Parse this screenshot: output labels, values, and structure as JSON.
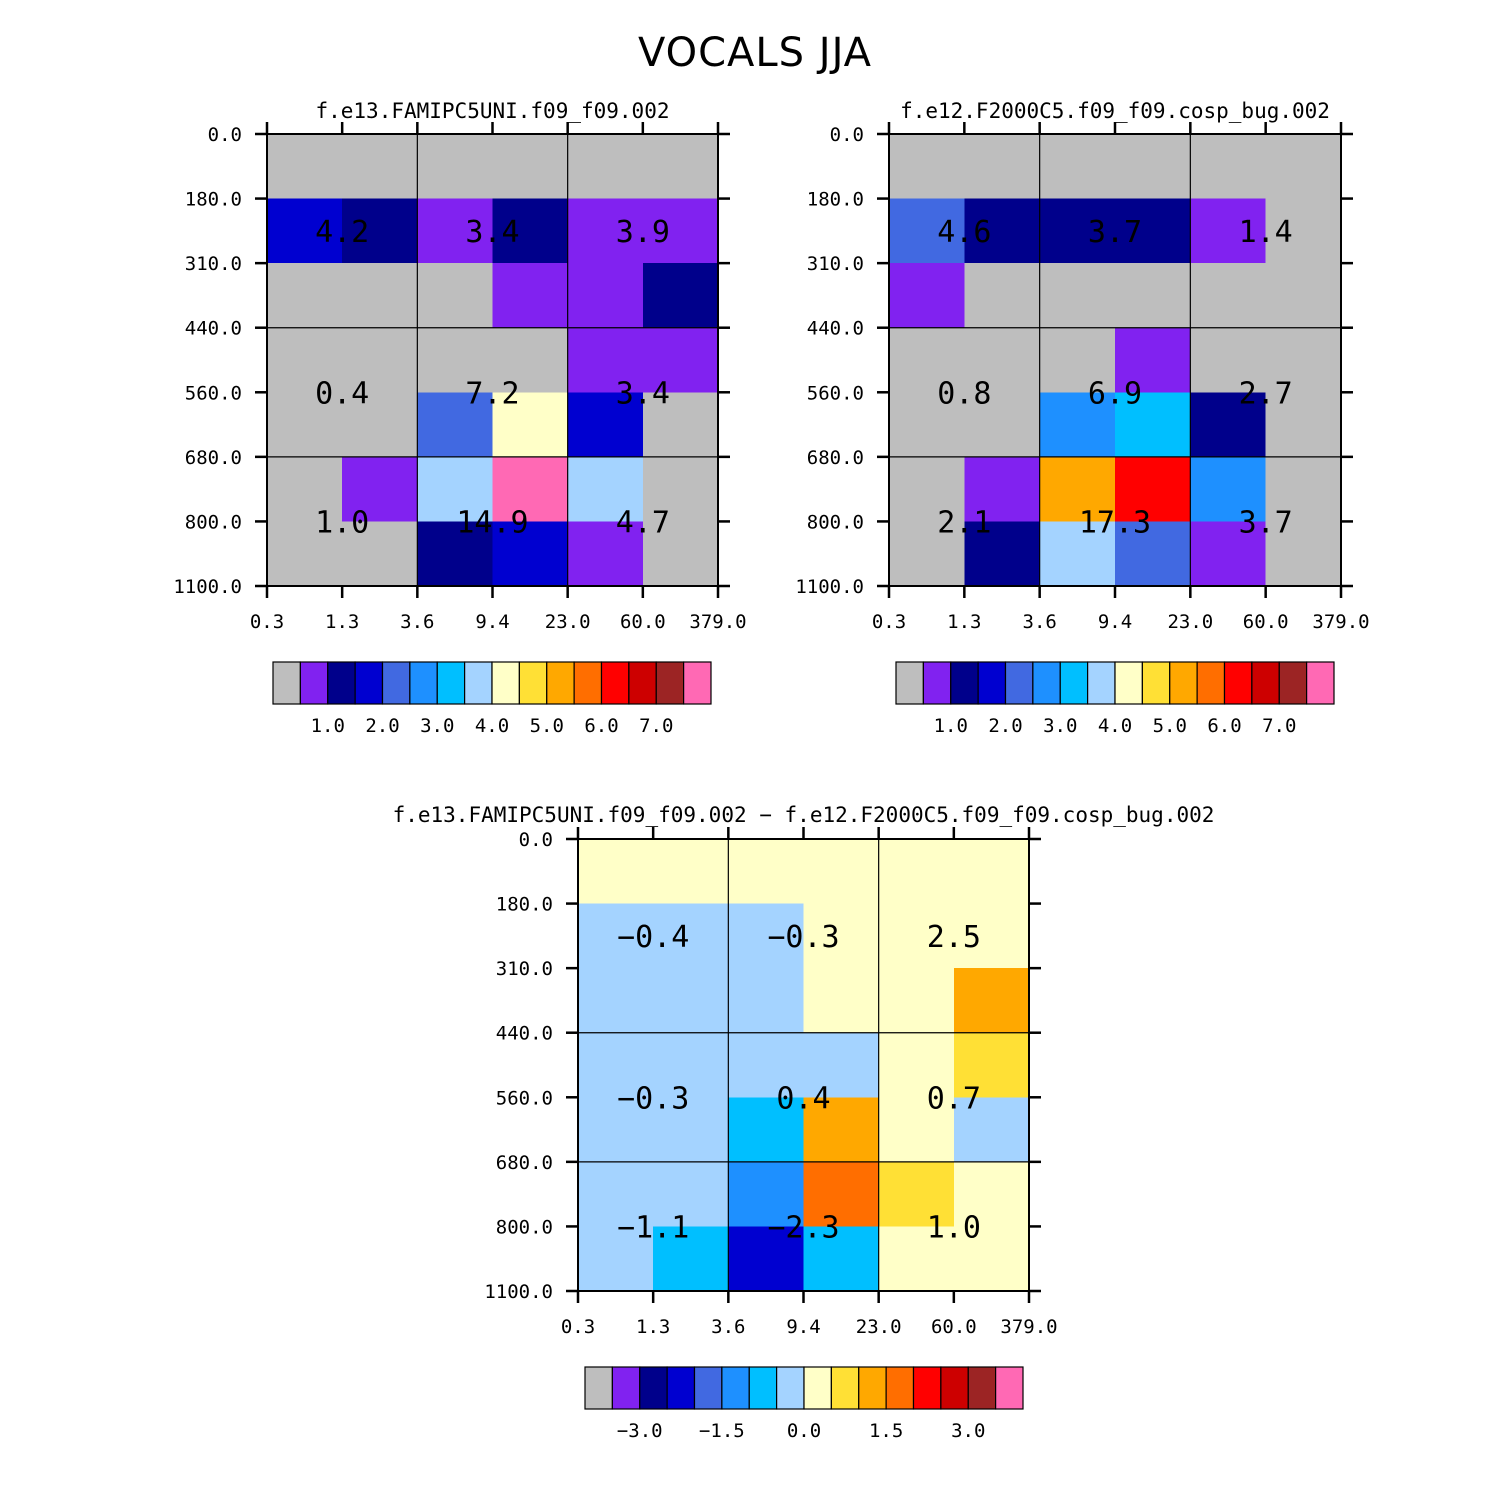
{
  "title": "VOCALS JJA",
  "chart_data": [
    {
      "type": "heatmap",
      "title": "f.e13.FAMIPC5UNI.f09_f09.002",
      "x_tick_labels": [
        "0.3",
        "1.3",
        "3.6",
        "9.4",
        "23.0",
        "60.0",
        "379.0"
      ],
      "y_tick_labels": [
        "0.0",
        "180.0",
        "310.0",
        "440.0",
        "560.0",
        "680.0",
        "800.0",
        "1100.0"
      ],
      "cells": [
        [
          "gray",
          "gray",
          "gray",
          "gray",
          "gray",
          "gray"
        ],
        [
          "blue",
          "navy",
          "purple",
          "navy",
          "purple",
          "purple"
        ],
        [
          "gray",
          "gray",
          "gray",
          "purple",
          "purple",
          "navy"
        ],
        [
          "gray",
          "gray",
          "gray",
          "gray",
          "purple",
          "purple"
        ],
        [
          "gray",
          "gray",
          "royalblue",
          "lightyellow",
          "blue",
          "gray"
        ],
        [
          "gray",
          "purple",
          "lightblue",
          "pink",
          "lightblue",
          "gray"
        ],
        [
          "gray",
          "gray",
          "navy",
          "blue",
          "purple",
          "gray"
        ]
      ],
      "box_values": [
        [
          "4.2",
          "3.4",
          "3.9"
        ],
        [
          "0.4",
          "7.2",
          "3.4"
        ],
        [
          "1.0",
          "14.9",
          "4.7"
        ]
      ],
      "colorbar_labels": [
        "1.0",
        "2.0",
        "3.0",
        "4.0",
        "5.0",
        "6.0",
        "7.0"
      ]
    },
    {
      "type": "heatmap",
      "title": "f.e12.F2000C5.f09_f09.cosp_bug.002",
      "x_tick_labels": [
        "0.3",
        "1.3",
        "3.6",
        "9.4",
        "23.0",
        "60.0",
        "379.0"
      ],
      "y_tick_labels": [
        "0.0",
        "180.0",
        "310.0",
        "440.0",
        "560.0",
        "680.0",
        "800.0",
        "1100.0"
      ],
      "cells": [
        [
          "gray",
          "gray",
          "gray",
          "gray",
          "gray",
          "gray"
        ],
        [
          "royalblue",
          "navy",
          "navy",
          "navy",
          "purple",
          "gray"
        ],
        [
          "purple",
          "gray",
          "gray",
          "gray",
          "gray",
          "gray"
        ],
        [
          "gray",
          "gray",
          "gray",
          "purple",
          "gray",
          "gray"
        ],
        [
          "gray",
          "gray",
          "dodgerblue",
          "deepskyblue",
          "navy",
          "gray"
        ],
        [
          "gray",
          "purple",
          "orange",
          "red",
          "dodgerblue",
          "gray"
        ],
        [
          "gray",
          "navy",
          "lightblue",
          "royalblue",
          "purple",
          "gray"
        ]
      ],
      "box_values": [
        [
          "4.6",
          "3.7",
          "1.4"
        ],
        [
          "0.8",
          "6.9",
          "2.7"
        ],
        [
          "2.1",
          "17.3",
          "3.7"
        ]
      ],
      "colorbar_labels": [
        "1.0",
        "2.0",
        "3.0",
        "4.0",
        "5.0",
        "6.0",
        "7.0"
      ]
    },
    {
      "type": "heatmap",
      "title": "f.e13.FAMIPC5UNI.f09_f09.002 − f.e12.F2000C5.f09_f09.cosp_bug.002",
      "x_tick_labels": [
        "0.3",
        "1.3",
        "3.6",
        "9.4",
        "23.0",
        "60.0",
        "379.0"
      ],
      "y_tick_labels": [
        "0.0",
        "180.0",
        "310.0",
        "440.0",
        "560.0",
        "680.0",
        "800.0",
        "1100.0"
      ],
      "cells": [
        [
          "lightyellow",
          "lightyellow",
          "lightyellow",
          "lightyellow",
          "lightyellow",
          "lightyellow"
        ],
        [
          "lightblue",
          "lightblue",
          "lightblue",
          "lightyellow",
          "lightyellow",
          "lightyellow"
        ],
        [
          "lightblue",
          "lightblue",
          "lightblue",
          "lightyellow",
          "lightyellow",
          "orange"
        ],
        [
          "lightblue",
          "lightblue",
          "lightblue",
          "lightblue",
          "lightyellow",
          "gold"
        ],
        [
          "lightblue",
          "lightblue",
          "deepskyblue",
          "orange",
          "lightyellow",
          "lightblue"
        ],
        [
          "lightblue",
          "lightblue",
          "dodgerblue",
          "darkorange",
          "gold",
          "lightyellow"
        ],
        [
          "lightblue",
          "deepskyblue",
          "blue",
          "deepskyblue",
          "lightyellow",
          "lightyellow"
        ]
      ],
      "box_values": [
        [
          "−0.4",
          "−0.3",
          "2.5"
        ],
        [
          "−0.3",
          "0.4",
          "0.7"
        ],
        [
          "−1.1",
          "−2.3",
          "1.0"
        ]
      ],
      "colorbar_labels": [
        "−3.0",
        "−1.5",
        "0.0",
        "1.5",
        "3.0"
      ]
    }
  ],
  "colors": {
    "gray": "#bebebe",
    "purple": "#8122f0",
    "navy": "#00008b",
    "blue": "#0000d0",
    "royalblue": "#4169e1",
    "dodgerblue": "#1e90ff",
    "deepskyblue": "#00bfff",
    "lightblue": "#a4d3ff",
    "lightyellow": "#ffffc8",
    "gold": "#ffe035",
    "orange": "#ffa800",
    "darkorange": "#ff6e00",
    "red": "#ff0000",
    "darkred": "#cd0000",
    "brown": "#9c2424",
    "pink": "#ff69b4"
  },
  "colorbar_sequence": [
    "gray",
    "purple",
    "navy",
    "blue",
    "royalblue",
    "dodgerblue",
    "deepskyblue",
    "lightblue",
    "lightyellow",
    "gold",
    "orange",
    "darkorange",
    "red",
    "darkred",
    "brown",
    "pink"
  ]
}
